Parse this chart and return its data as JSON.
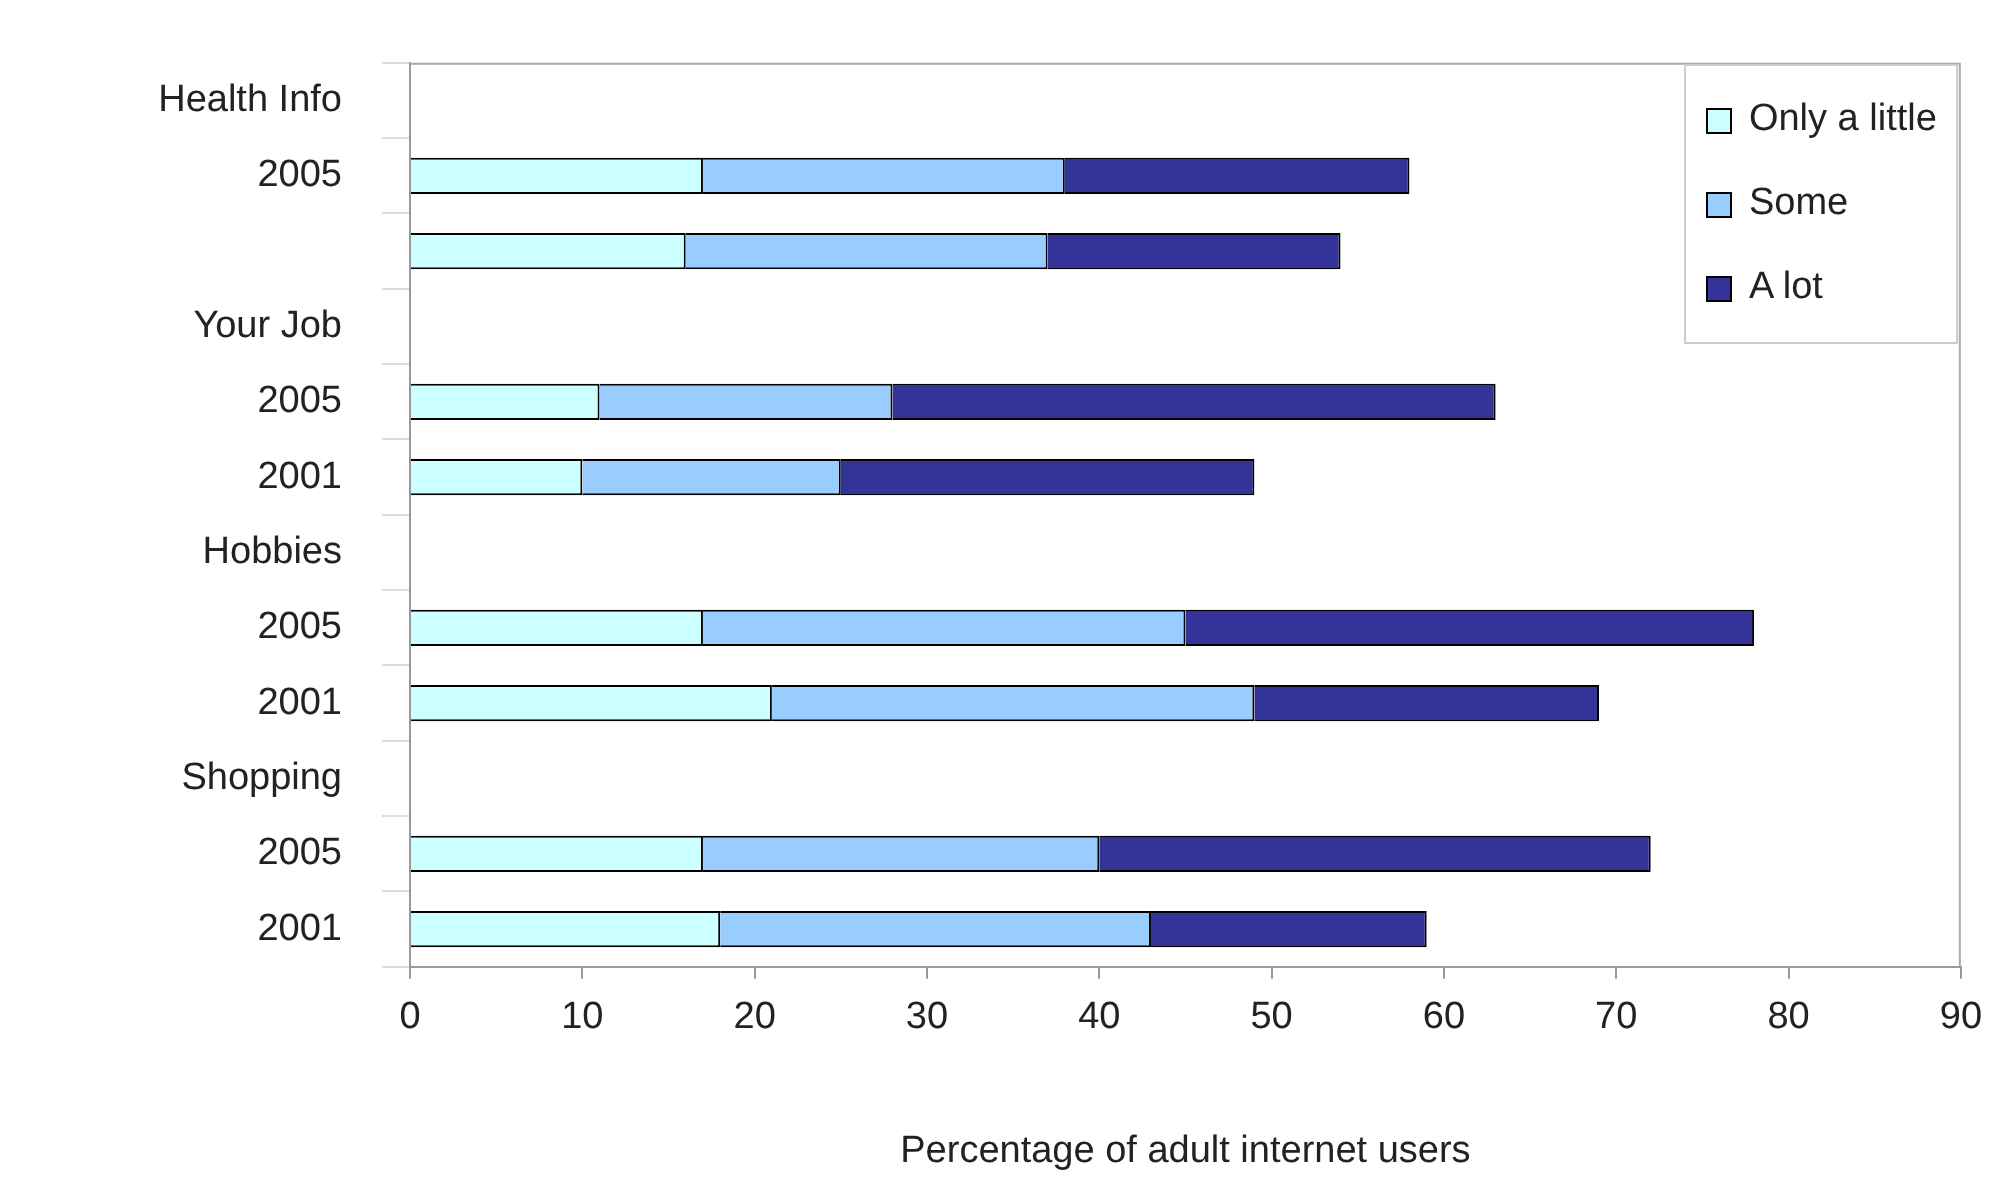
{
  "chart_data": {
    "type": "bar",
    "orientation": "horizontal",
    "stacked": true,
    "categories": [
      "Health Info",
      "2005",
      null,
      "Your Job",
      "2005",
      "2001",
      "Hobbies",
      "2005",
      "2001",
      "Shopping",
      "2005",
      "2001"
    ],
    "series": [
      {
        "name": "Only a little",
        "color": "#ccffff",
        "values": [
          null,
          17,
          16,
          null,
          11,
          10,
          null,
          17,
          21,
          null,
          17,
          18
        ]
      },
      {
        "name": "Some",
        "color": "#99ccff",
        "values": [
          null,
          21,
          21,
          null,
          17,
          15,
          null,
          28,
          28,
          null,
          23,
          25
        ]
      },
      {
        "name": "A lot",
        "color": "#333399",
        "values": [
          null,
          20,
          17,
          null,
          35,
          24,
          null,
          33,
          20,
          null,
          32,
          16
        ]
      }
    ],
    "xlabel": "Percentage of adult internet users",
    "xlim": [
      0,
      90
    ],
    "xticks": [
      0,
      10,
      20,
      30,
      40,
      50,
      60,
      70,
      80,
      90
    ],
    "grid": false,
    "legend": "top right"
  }
}
